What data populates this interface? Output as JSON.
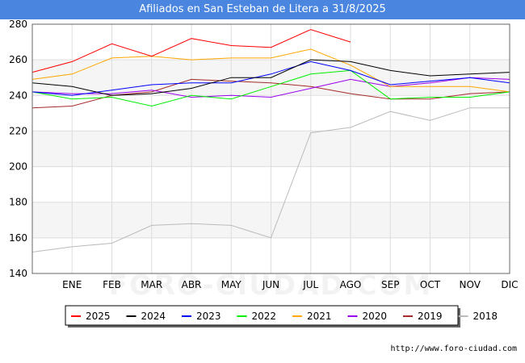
{
  "title": "Afiliados en San Esteban de Litera a 31/8/2025",
  "source": "http://www.foro-ciudad.com",
  "watermark": "FORO-CIUDAD.COM",
  "chart_data": {
    "type": "line",
    "title": "Afiliados en San Esteban de Litera a 31/8/2025",
    "xlabel": "",
    "ylabel": "",
    "categories": [
      "",
      "ENE",
      "FEB",
      "MAR",
      "ABR",
      "MAY",
      "JUN",
      "JUL",
      "AGO",
      "SEP",
      "OCT",
      "NOV",
      "DIC"
    ],
    "ylim": [
      140,
      280
    ],
    "yticks": [
      140,
      160,
      180,
      200,
      220,
      240,
      260,
      280
    ],
    "grid": true,
    "legend_position": "bottom",
    "series": [
      {
        "name": "2025",
        "color": "#ff0000",
        "values": [
          253,
          259,
          269,
          262,
          272,
          268,
          267,
          277,
          270,
          null,
          null,
          null,
          null
        ]
      },
      {
        "name": "2024",
        "color": "#000000",
        "values": [
          247,
          245,
          240,
          241,
          244,
          250,
          250,
          260,
          259,
          254,
          251,
          252,
          253
        ]
      },
      {
        "name": "2023",
        "color": "#0000ff",
        "values": [
          242,
          240,
          243,
          246,
          247,
          247,
          252,
          259,
          254,
          246,
          248,
          250,
          247
        ]
      },
      {
        "name": "2022",
        "color": "#00ee00",
        "values": [
          242,
          238,
          239,
          234,
          240,
          238,
          245,
          252,
          254,
          238,
          239,
          239,
          242
        ]
      },
      {
        "name": "2021",
        "color": "#ffa500",
        "values": [
          249,
          252,
          261,
          262,
          260,
          261,
          261,
          266,
          257,
          245,
          245,
          245,
          242
        ]
      },
      {
        "name": "2020",
        "color": "#9900ee",
        "values": [
          242,
          241,
          241,
          243,
          239,
          240,
          239,
          244,
          249,
          245,
          247,
          250,
          249
        ]
      },
      {
        "name": "2019",
        "color": "#a52a2a",
        "values": [
          233,
          234,
          240,
          242,
          249,
          248,
          247,
          245,
          241,
          238,
          238,
          241,
          242
        ]
      },
      {
        "name": "2018",
        "color": "#bbbbbb",
        "values": [
          152,
          155,
          157,
          167,
          168,
          167,
          160,
          219,
          222,
          231,
          226,
          233,
          233
        ]
      }
    ]
  }
}
